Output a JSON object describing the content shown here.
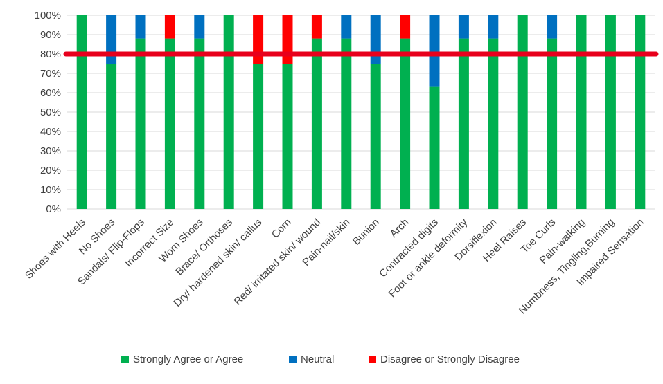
{
  "chart_data": {
    "type": "bar",
    "stacked": true,
    "title": "",
    "xlabel": "",
    "ylabel": "",
    "ylim": [
      0,
      100
    ],
    "y_ticks": [
      "0%",
      "10%",
      "20%",
      "30%",
      "40%",
      "50%",
      "60%",
      "70%",
      "80%",
      "90%",
      "100%"
    ],
    "categories": [
      "Shoes with Heels",
      "No Shoes",
      "Sandals/ Flip-Flops",
      "Incorrect Size",
      "Worn Shoes",
      "Brace/ Orthoses",
      "Dry/ hardened skin/ callus",
      "Corn",
      "Red/ irritated skin/ wound",
      "Pain-nail/skin",
      "Bunion",
      "Arch",
      "Contracted digits",
      "Foot or ankle deformity",
      "Dorsiflexion",
      "Heel Raises",
      "Toe Curls",
      "Pain-walking",
      "Numbness, Tingling,Burning",
      "Impaired Sensation"
    ],
    "series": [
      {
        "name": "Strongly Agree or Agree",
        "color": "#00B050",
        "values": [
          100,
          75,
          88,
          88,
          88,
          100,
          75,
          75,
          88,
          88,
          75,
          88,
          63,
          88,
          88,
          100,
          88,
          100,
          100,
          100
        ]
      },
      {
        "name": "Neutral",
        "color": "#0070C0",
        "values": [
          0,
          25,
          12,
          0,
          12,
          0,
          0,
          0,
          0,
          12,
          25,
          0,
          37,
          12,
          12,
          0,
          12,
          0,
          0,
          0
        ]
      },
      {
        "name": "Disagree or Strongly Disagree",
        "color": "#FF0000",
        "values": [
          0,
          0,
          0,
          12,
          0,
          0,
          25,
          25,
          12,
          0,
          0,
          12,
          0,
          0,
          0,
          0,
          0,
          0,
          0,
          0
        ]
      }
    ],
    "reference_line": {
      "value": 80,
      "color": "#E8001C"
    },
    "grid": true,
    "legend_position": "bottom"
  }
}
